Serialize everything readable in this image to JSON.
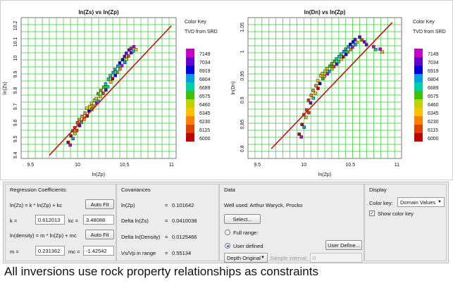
{
  "plots": [
    {
      "title": "ln(Zs) vs ln(Zp)",
      "xlabel": "ln(Zp)",
      "ylabel": "ln(Zs)",
      "x_ticks": [
        "9.5",
        "10",
        "10.5",
        "11"
      ],
      "y_ticks": [
        "9.4",
        "9.5",
        "9.6",
        "9.7",
        "9.8",
        "9.9",
        "10",
        "10.1",
        "10.2"
      ],
      "color_key": {
        "title": "Color Key",
        "subtitle": "TVD from SRD"
      }
    },
    {
      "title": "ln(Dn) vs ln(Zp)",
      "xlabel": "ln(Zp)",
      "ylabel": "ln(Dn)",
      "x_ticks": [
        "9.5",
        "10",
        "10.5",
        "11"
      ],
      "y_ticks": [
        "0.8",
        "0.85",
        "0.9",
        "0.95",
        "1",
        "1.05"
      ],
      "color_key": {
        "title": "Color Key",
        "subtitle": "TVD from SRD"
      }
    }
  ],
  "color_scale": {
    "labels": [
      "7149",
      "7034",
      "6919",
      "6804",
      "6689",
      "6575",
      "6460",
      "6345",
      "6230",
      "6115",
      "6000"
    ],
    "colors": [
      "#cc00cc",
      "#6600cc",
      "#0000dd",
      "#00a0e0",
      "#00d0a0",
      "#40c000",
      "#c0d000",
      "#ffc000",
      "#ff8000",
      "#e04000",
      "#c00000"
    ]
  },
  "chart_data": [
    {
      "type": "scatter",
      "title": "ln(Zs) vs ln(Zp)",
      "xlabel": "ln(Zp)",
      "ylabel": "ln(Zs)",
      "xlim": [
        9.4,
        11.05
      ],
      "ylim": [
        9.38,
        10.25
      ],
      "fit_line": {
        "x": [
          9.7,
          11.0
        ],
        "y": [
          9.4,
          10.2
        ]
      },
      "points": [
        [
          9.9,
          9.48
        ],
        [
          9.93,
          9.52
        ],
        [
          9.95,
          9.55
        ],
        [
          9.97,
          9.57
        ],
        [
          10.0,
          9.6
        ],
        [
          10.02,
          9.62
        ],
        [
          10.05,
          9.64
        ],
        [
          10.08,
          9.66
        ],
        [
          10.1,
          9.69
        ],
        [
          10.13,
          9.7
        ],
        [
          10.15,
          9.72
        ],
        [
          10.18,
          9.74
        ],
        [
          10.2,
          9.75
        ],
        [
          10.22,
          9.78
        ],
        [
          10.25,
          9.8
        ],
        [
          10.28,
          9.82
        ],
        [
          10.3,
          9.84
        ],
        [
          10.33,
          9.87
        ],
        [
          10.35,
          9.89
        ],
        [
          10.38,
          9.91
        ],
        [
          10.4,
          9.93
        ],
        [
          10.43,
          9.95
        ],
        [
          10.45,
          9.97
        ],
        [
          10.48,
          9.99
        ],
        [
          10.5,
          10.01
        ],
        [
          10.52,
          10.03
        ],
        [
          10.55,
          10.05
        ],
        [
          10.57,
          10.06
        ],
        [
          10.6,
          10.07
        ]
      ],
      "annotations": []
    },
    {
      "type": "scatter",
      "title": "ln(Dn) vs ln(Zp)",
      "xlabel": "ln(Zp)",
      "ylabel": "ln(Dn)",
      "xlim": [
        9.4,
        11.05
      ],
      "ylim": [
        0.78,
        1.07
      ],
      "fit_line": {
        "x": [
          9.65,
          10.95
        ],
        "y": [
          0.8,
          1.06
        ]
      },
      "points": [
        [
          9.95,
          0.83
        ],
        [
          9.98,
          0.85
        ],
        [
          10.0,
          0.87
        ],
        [
          10.03,
          0.88
        ],
        [
          10.05,
          0.9
        ],
        [
          10.08,
          0.91
        ],
        [
          10.1,
          0.92
        ],
        [
          10.13,
          0.93
        ],
        [
          10.15,
          0.94
        ],
        [
          10.18,
          0.95
        ],
        [
          10.2,
          0.955
        ],
        [
          10.23,
          0.96
        ],
        [
          10.25,
          0.965
        ],
        [
          10.28,
          0.97
        ],
        [
          10.3,
          0.975
        ],
        [
          10.33,
          0.98
        ],
        [
          10.35,
          0.985
        ],
        [
          10.38,
          0.99
        ],
        [
          10.4,
          0.995
        ],
        [
          10.43,
          1.0
        ],
        [
          10.45,
          1.005
        ],
        [
          10.48,
          1.01
        ],
        [
          10.5,
          1.015
        ],
        [
          10.53,
          1.02
        ],
        [
          10.55,
          1.025
        ],
        [
          10.6,
          1.03
        ],
        [
          10.65,
          1.02
        ],
        [
          10.75,
          1.01
        ],
        [
          10.82,
          1.005
        ]
      ],
      "annotations": []
    }
  ],
  "regression": {
    "title": "Regression Coefficients:",
    "eq1": "ln(Zs) = k * ln(Zp) + kc",
    "autofit1": "Auto Fit",
    "k_label": "k =",
    "k_value": "0.612013",
    "kc_label": "kc =",
    "kc_value": "3.48088",
    "eq2": "ln(density) = m * ln(Zp) + mc",
    "autofit2": "Auto Fit",
    "m_label": "m =",
    "m_value": "0.231362",
    "mc_label": "mc =",
    "mc_value": "-1.42542"
  },
  "covariances": {
    "title": "Covariances",
    "rows": [
      {
        "label": "ln(Zp)",
        "eq": "=",
        "value": "0.101642"
      },
      {
        "label": "Delta ln(Zs)",
        "eq": "=",
        "value": "0.0410038"
      },
      {
        "label": "Delta ln(Density)",
        "eq": "=",
        "value": "0.0125466"
      },
      {
        "label": "Vs/Vp in range",
        "eq": "=",
        "value": "0.55134"
      }
    ]
  },
  "data_group": {
    "title": "Data",
    "well_used": "Well used: Arthur Waryck, Procko",
    "select_button": "Select...",
    "full_range": "Full range:",
    "user_defined": "User defined",
    "user_define_button": "User Define...",
    "depth_option": "Depth Original",
    "sample_interval_label": "Sample interval:",
    "sample_interval_value": "0"
  },
  "display": {
    "title": "Display",
    "color_key_label": "Color key:",
    "color_key_value": "Domain Values",
    "show_color_key": "Show color key",
    "check_mark": "✓"
  },
  "caption": "All inversions use rock property relationships as constraints"
}
